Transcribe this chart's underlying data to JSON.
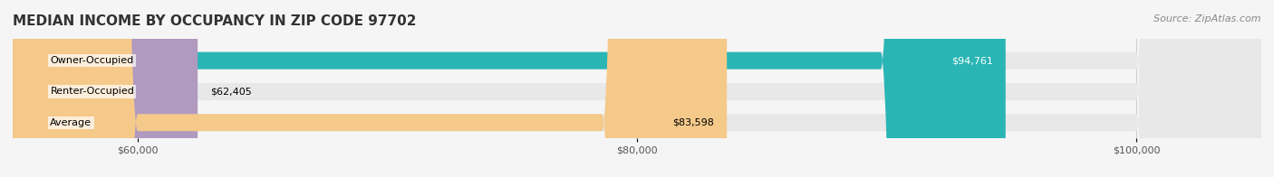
{
  "title": "MEDIAN INCOME BY OCCUPANCY IN ZIP CODE 97702",
  "source": "Source: ZipAtlas.com",
  "categories": [
    "Owner-Occupied",
    "Renter-Occupied",
    "Average"
  ],
  "values": [
    94761,
    62405,
    83598
  ],
  "labels": [
    "$94,761",
    "$62,405",
    "$83,598"
  ],
  "bar_colors": [
    "#2ab5b5",
    "#b09abf",
    "#f5c98a"
  ],
  "bar_edge_colors": [
    "#2ab5b5",
    "#b09abf",
    "#f5c98a"
  ],
  "background_color": "#f5f5f5",
  "bar_bg_color": "#e8e8e8",
  "xlim_min": 55000,
  "xlim_max": 105000,
  "xticks": [
    60000,
    80000,
    100000
  ],
  "xtick_labels": [
    "$60,000",
    "$80,000",
    "$100,000"
  ],
  "title_fontsize": 11,
  "label_fontsize": 8,
  "tick_fontsize": 8,
  "source_fontsize": 8
}
